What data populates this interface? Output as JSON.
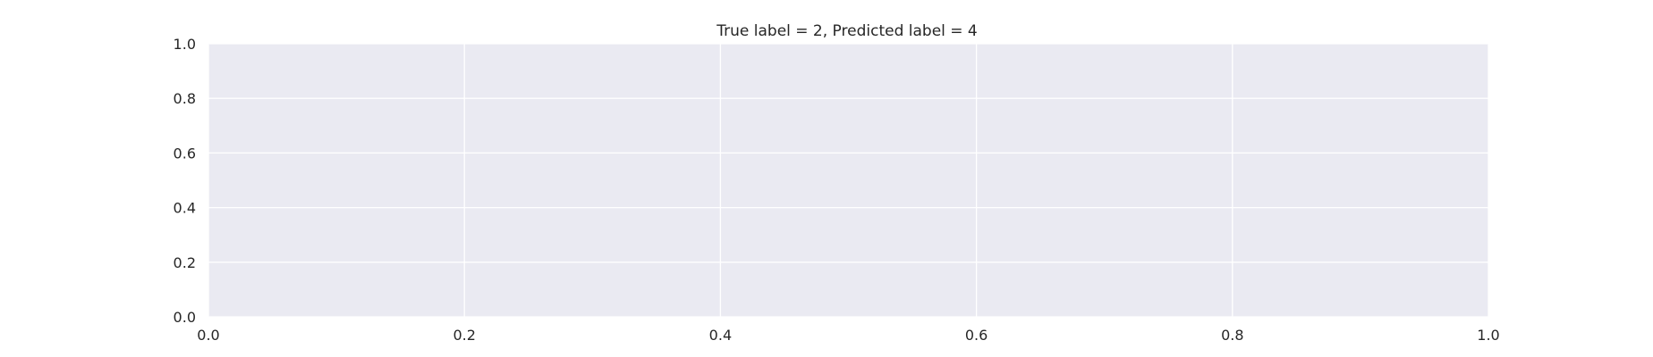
{
  "chart_data": {
    "type": "line",
    "title": "True label = 2, Predicted label = 4",
    "xlabel": "",
    "ylabel": "",
    "xlim": [
      0.0,
      1.0
    ],
    "ylim": [
      0.0,
      1.0
    ],
    "x_ticks": [
      "0.0",
      "0.2",
      "0.4",
      "0.6",
      "0.8",
      "1.0"
    ],
    "y_ticks": [
      "0.0",
      "0.2",
      "0.4",
      "0.6",
      "0.8",
      "1.0"
    ],
    "series": [],
    "grid": true,
    "colors": {
      "axes_background": "#eaeaf2",
      "grid": "#ffffff",
      "text": "#262626"
    }
  }
}
